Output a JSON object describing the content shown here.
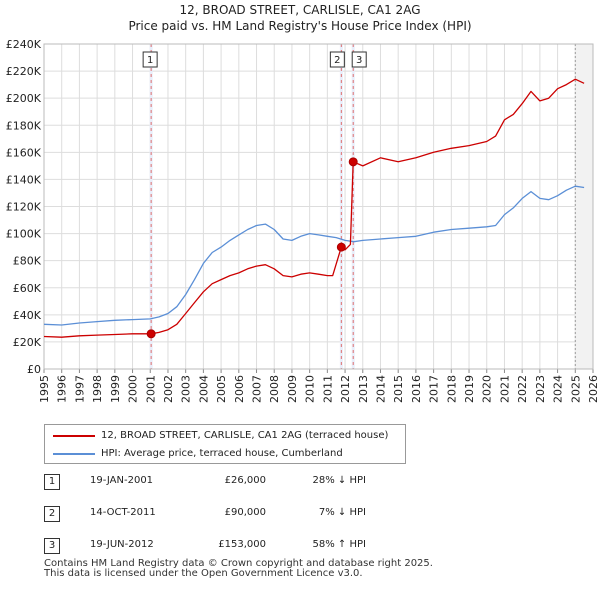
{
  "chart_data": {
    "type": "line",
    "title": "12, BROAD STREET, CARLISLE, CA1 2AG",
    "subtitle": "Price paid vs. HM Land Registry's House Price Index (HPI)",
    "xlim": [
      1995,
      2026
    ],
    "ylim": [
      0,
      240000
    ],
    "x_ticks": [
      1995,
      1996,
      1997,
      1998,
      1999,
      2000,
      2001,
      2002,
      2003,
      2004,
      2005,
      2006,
      2007,
      2008,
      2009,
      2010,
      2011,
      2012,
      2013,
      2014,
      2015,
      2016,
      2017,
      2018,
      2019,
      2020,
      2021,
      2022,
      2023,
      2024,
      2025,
      2026
    ],
    "y_ticks": [
      0,
      20000,
      40000,
      60000,
      80000,
      100000,
      120000,
      140000,
      160000,
      180000,
      200000,
      220000,
      240000
    ],
    "y_tick_labels": [
      "£0",
      "£20K",
      "£40K",
      "£60K",
      "£80K",
      "£100K",
      "£120K",
      "£140K",
      "£160K",
      "£180K",
      "£200K",
      "£220K",
      "£240K"
    ],
    "projection_start": 2025.0,
    "series": [
      {
        "name": "12, BROAD STREET, CARLISLE, CA1 2AG (terraced house)",
        "color": "#cc0000",
        "x": [
          1995.0,
          1996.0,
          1997.0,
          1998.0,
          1999.0,
          2000.0,
          2001.05,
          2001.5,
          2002.0,
          2002.5,
          2003.0,
          2003.5,
          2004.0,
          2004.5,
          2005.0,
          2005.5,
          2006.0,
          2006.5,
          2007.0,
          2007.5,
          2008.0,
          2008.5,
          2009.0,
          2009.5,
          2010.0,
          2010.5,
          2011.0,
          2011.3,
          2011.79,
          2012.0,
          2012.3,
          2012.46,
          2013.0,
          2014.0,
          2015.0,
          2016.0,
          2017.0,
          2018.0,
          2019.0,
          2020.0,
          2020.5,
          2021.0,
          2021.5,
          2022.0,
          2022.5,
          2023.0,
          2023.5,
          2024.0,
          2024.5,
          2025.0,
          2025.5
        ],
        "values": [
          24000,
          23500,
          24500,
          25000,
          25500,
          26000,
          26000,
          27000,
          29000,
          33000,
          41000,
          49000,
          57000,
          63000,
          66000,
          69000,
          71000,
          74000,
          76000,
          77000,
          74000,
          69000,
          68000,
          70000,
          71000,
          70000,
          69000,
          69000,
          90000,
          88000,
          92000,
          153000,
          150000,
          156000,
          153000,
          156000,
          160000,
          163000,
          165000,
          168000,
          172000,
          184000,
          188000,
          196000,
          205000,
          198000,
          200000,
          207000,
          210000,
          214000,
          211000
        ]
      },
      {
        "name": "HPI: Average price, terraced house, Cumberland",
        "color": "#5b8fd6",
        "x": [
          1995.0,
          1996.0,
          1997.0,
          1998.0,
          1999.0,
          2000.0,
          2001.0,
          2001.5,
          2002.0,
          2002.5,
          2003.0,
          2003.5,
          2004.0,
          2004.5,
          2005.0,
          2005.5,
          2006.0,
          2006.5,
          2007.0,
          2007.5,
          2008.0,
          2008.5,
          2009.0,
          2009.5,
          2010.0,
          2010.5,
          2011.0,
          2011.5,
          2012.0,
          2012.5,
          2013.0,
          2014.0,
          2015.0,
          2016.0,
          2017.0,
          2018.0,
          2019.0,
          2020.0,
          2020.5,
          2021.0,
          2021.5,
          2022.0,
          2022.5,
          2023.0,
          2023.5,
          2024.0,
          2024.5,
          2025.0,
          2025.5
        ],
        "values": [
          33000,
          32500,
          34000,
          35000,
          36000,
          36500,
          37000,
          38500,
          41000,
          46000,
          55000,
          66000,
          78000,
          86000,
          90000,
          95000,
          99000,
          103000,
          106000,
          107000,
          103000,
          96000,
          95000,
          98000,
          100000,
          99000,
          98000,
          97000,
          95000,
          94000,
          95000,
          96000,
          97000,
          98000,
          101000,
          103000,
          104000,
          105000,
          106000,
          114000,
          119000,
          126000,
          131000,
          126000,
          125000,
          128000,
          132000,
          135000,
          134000
        ]
      }
    ],
    "sales": [
      {
        "label": "1",
        "x": 2001.05,
        "price": 26000
      },
      {
        "label": "2",
        "x": 2011.79,
        "price": 90000
      },
      {
        "label": "3",
        "x": 2012.46,
        "price": 153000
      }
    ]
  },
  "legend": {
    "property_label": "12, BROAD STREET, CARLISLE, CA1 2AG (terraced house)",
    "hpi_label": "HPI: Average price, terraced house, Cumberland"
  },
  "sales_table": [
    {
      "num": "1",
      "date": "19-JAN-2001",
      "price": "£26,000",
      "hpi": "28% ↓ HPI"
    },
    {
      "num": "2",
      "date": "14-OCT-2011",
      "price": "£90,000",
      "hpi": "7% ↓ HPI"
    },
    {
      "num": "3",
      "date": "19-JUN-2012",
      "price": "£153,000",
      "hpi": "58% ↑ HPI"
    }
  ],
  "footer": {
    "line1": "Contains HM Land Registry data © Crown copyright and database right 2025.",
    "line2": "This data is licensed under the Open Government Licence v3.0."
  }
}
